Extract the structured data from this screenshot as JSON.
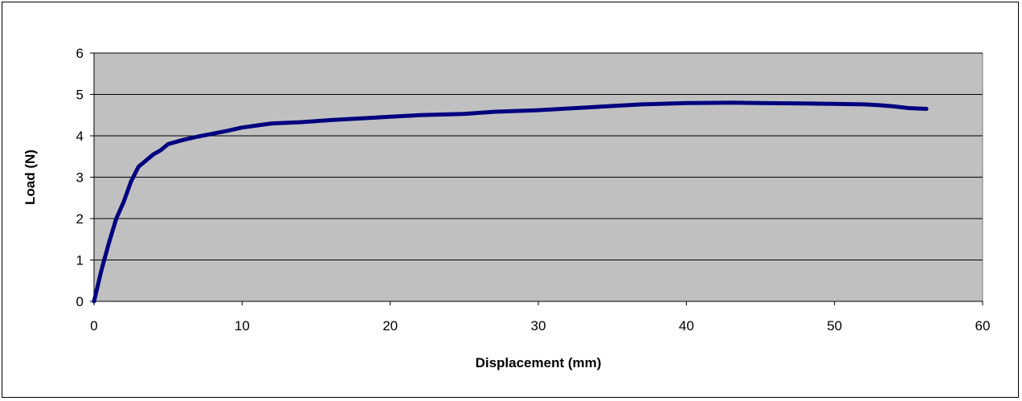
{
  "chart_data": {
    "type": "line",
    "title": "",
    "xlabel": "Displacement (mm)",
    "ylabel": "Load (N)",
    "xlim": [
      0,
      60
    ],
    "ylim": [
      0,
      6
    ],
    "x_ticks": [
      0,
      10,
      20,
      30,
      40,
      50,
      60
    ],
    "y_ticks": [
      0,
      1,
      2,
      3,
      4,
      5,
      6
    ],
    "grid": "horizontal",
    "legend": "none",
    "colors": {
      "plot_background": "#c0c0c0",
      "line": "#00007f",
      "gridline": "#000000"
    },
    "series": [
      {
        "x": [
          0,
          0.5,
          1,
          1.5,
          2,
          2.5,
          3,
          3.5,
          4,
          4.5,
          5,
          6,
          7,
          8,
          9,
          10,
          11,
          12,
          14,
          16,
          18,
          20,
          22,
          24,
          25,
          27,
          30,
          33,
          35,
          37,
          40,
          43,
          45,
          48,
          50,
          52,
          53,
          54,
          55,
          56.2
        ],
        "y": [
          0,
          0.75,
          1.4,
          2.0,
          2.4,
          2.9,
          3.25,
          3.4,
          3.55,
          3.65,
          3.8,
          3.9,
          3.98,
          4.05,
          4.12,
          4.2,
          4.25,
          4.3,
          4.33,
          4.38,
          4.42,
          4.46,
          4.5,
          4.52,
          4.53,
          4.58,
          4.62,
          4.68,
          4.72,
          4.76,
          4.79,
          4.8,
          4.79,
          4.78,
          4.77,
          4.76,
          4.74,
          4.71,
          4.67,
          4.65
        ]
      }
    ]
  }
}
